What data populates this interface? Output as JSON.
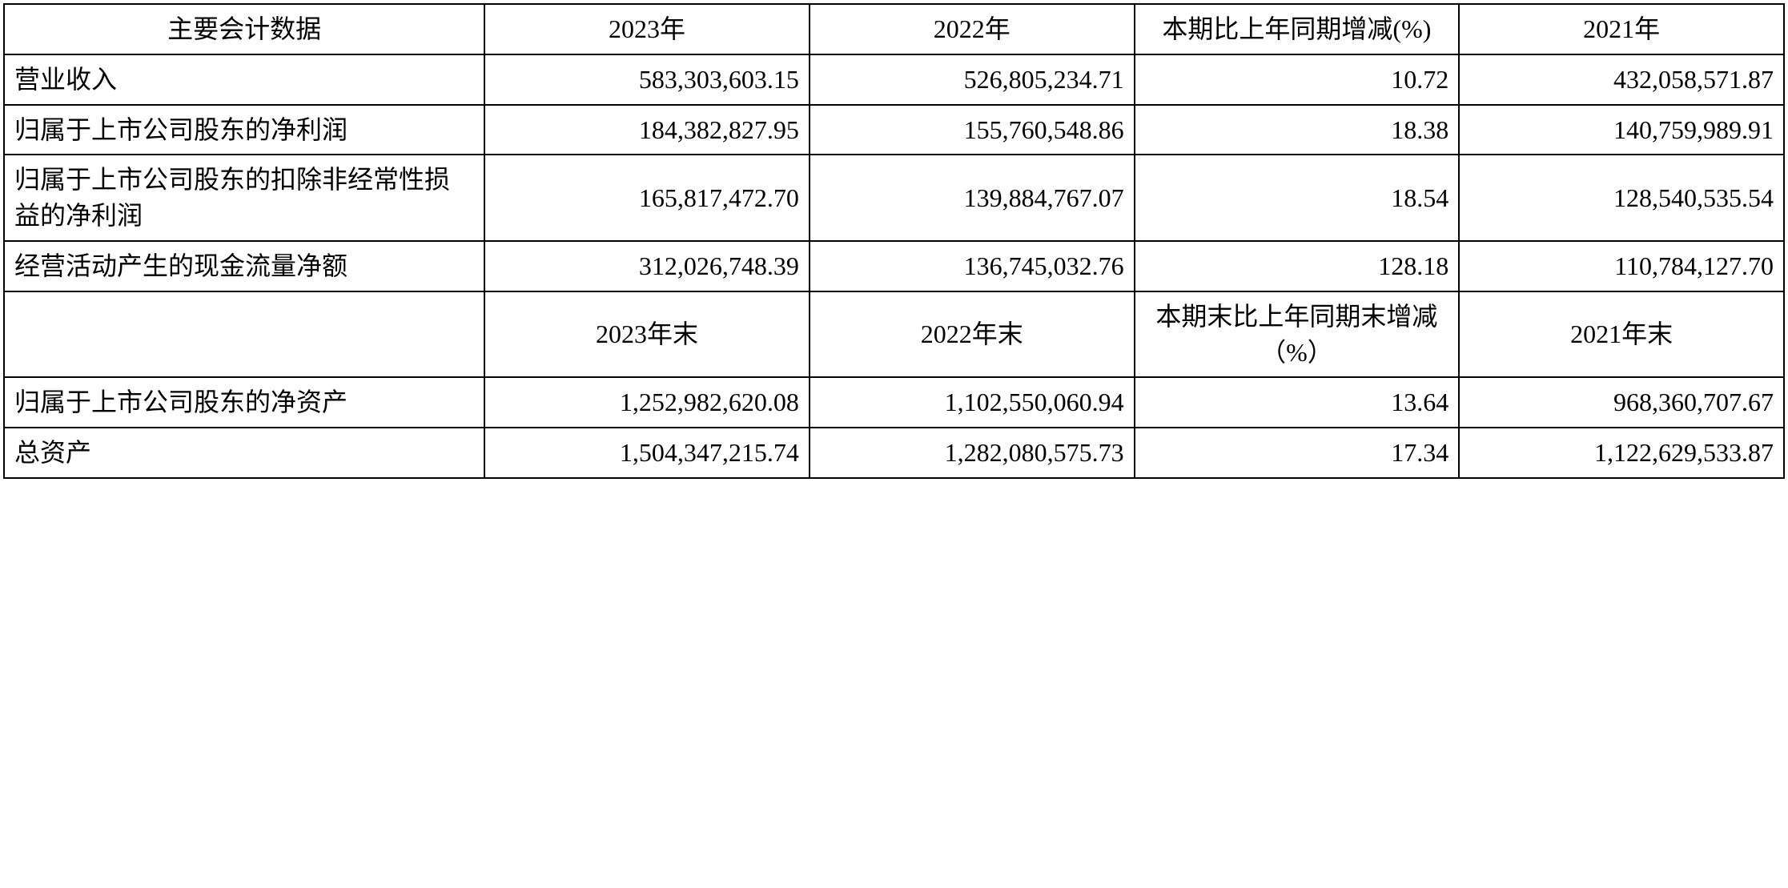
{
  "table": {
    "type": "table",
    "border_color": "#000000",
    "background_color": "#ffffff",
    "text_color": "#000000",
    "font_size_pt": 24,
    "columns": [
      {
        "key": "metric",
        "align": "left",
        "width_pct": 27
      },
      {
        "key": "y2023",
        "align": "right",
        "width_pct": 18.25
      },
      {
        "key": "y2022",
        "align": "right",
        "width_pct": 18.25
      },
      {
        "key": "change",
        "align": "right",
        "width_pct": 18.25
      },
      {
        "key": "y2021",
        "align": "right",
        "width_pct": 18.25
      }
    ],
    "header1": {
      "c0": "主要会计数据",
      "c1": "2023年",
      "c2": "2022年",
      "c3": "本期比上年同期增减(%)",
      "c4": "2021年"
    },
    "rows1": [
      {
        "label": "营业收入",
        "y2023": "583,303,603.15",
        "y2022": "526,805,234.71",
        "change": "10.72",
        "y2021": "432,058,571.87"
      },
      {
        "label": "归属于上市公司股东的净利润",
        "y2023": "184,382,827.95",
        "y2022": "155,760,548.86",
        "change": "18.38",
        "y2021": "140,759,989.91"
      },
      {
        "label": "归属于上市公司股东的扣除非经常性损益的净利润",
        "y2023": "165,817,472.70",
        "y2022": "139,884,767.07",
        "change": "18.54",
        "y2021": "128,540,535.54"
      },
      {
        "label": "经营活动产生的现金流量净额",
        "y2023": "312,026,748.39",
        "y2022": "136,745,032.76",
        "change": "128.18",
        "y2021": "110,784,127.70"
      }
    ],
    "header2": {
      "c0": "",
      "c1": "2023年末",
      "c2": "2022年末",
      "c3": "本期末比上年同期末增减（%）",
      "c4": "2021年末"
    },
    "rows2": [
      {
        "label": "归属于上市公司股东的净资产",
        "y2023": "1,252,982,620.08",
        "y2022": "1,102,550,060.94",
        "change": "13.64",
        "y2021": "968,360,707.67"
      },
      {
        "label": "总资产",
        "y2023": "1,504,347,215.74",
        "y2022": "1,282,080,575.73",
        "change": "17.34",
        "y2021": "1,122,629,533.87"
      }
    ]
  }
}
